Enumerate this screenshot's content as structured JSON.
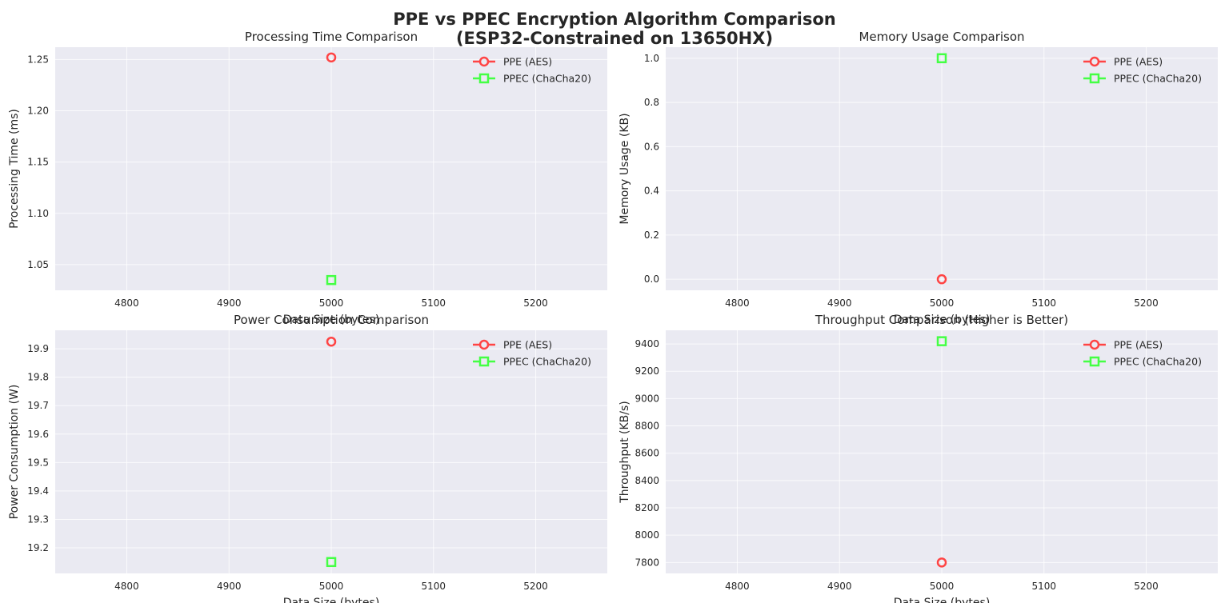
{
  "figure": {
    "title_line1": "PPE vs PPEC Encryption Algorithm Comparison",
    "title_line2": "(ESP32-Constrained on 13650HX)"
  },
  "colors": {
    "plot_bg": "#eaeaf2",
    "grid": "#ffffff",
    "ppe": "#ff4444",
    "ppec": "#44ff44"
  },
  "chart_data": [
    {
      "type": "line",
      "title": "Processing Time Comparison",
      "xlabel": "Data Size (bytes)",
      "ylabel": "Processing Time (ms)",
      "xlim": [
        4730,
        5270
      ],
      "ylim": [
        1.025,
        1.262
      ],
      "xticks": [
        4800,
        4900,
        5000,
        5100,
        5200
      ],
      "yticks": [
        1.05,
        1.1,
        1.15,
        1.2,
        1.25
      ],
      "ytick_labels": [
        "1.05",
        "1.10",
        "1.15",
        "1.20",
        "1.25"
      ],
      "legend": "top-right",
      "grid": true,
      "series": [
        {
          "name": "PPE (AES)",
          "marker": "circle",
          "x": [
            5000
          ],
          "y": [
            1.252
          ]
        },
        {
          "name": "PPEC (ChaCha20)",
          "marker": "square",
          "x": [
            5000
          ],
          "y": [
            1.035
          ]
        }
      ]
    },
    {
      "type": "line",
      "title": "Memory Usage Comparison",
      "xlabel": "Data Size (bytes)",
      "ylabel": "Memory Usage (KB)",
      "xlim": [
        4730,
        5270
      ],
      "ylim": [
        -0.05,
        1.05
      ],
      "xticks": [
        4800,
        4900,
        5000,
        5100,
        5200
      ],
      "yticks": [
        0.0,
        0.2,
        0.4,
        0.6,
        0.8,
        1.0
      ],
      "ytick_labels": [
        "0.0",
        "0.2",
        "0.4",
        "0.6",
        "0.8",
        "1.0"
      ],
      "legend": "top-right",
      "grid": true,
      "series": [
        {
          "name": "PPE (AES)",
          "marker": "circle",
          "x": [
            5000
          ],
          "y": [
            0.0
          ]
        },
        {
          "name": "PPEC (ChaCha20)",
          "marker": "square",
          "x": [
            5000
          ],
          "y": [
            1.0
          ]
        }
      ]
    },
    {
      "type": "line",
      "title": "Power Consumption Comparison",
      "xlabel": "Data Size (bytes)",
      "ylabel": "Power Consumption (W)",
      "xlim": [
        4730,
        5270
      ],
      "ylim": [
        19.11,
        19.965
      ],
      "xticks": [
        4800,
        4900,
        5000,
        5100,
        5200
      ],
      "yticks": [
        19.2,
        19.3,
        19.4,
        19.5,
        19.6,
        19.7,
        19.8,
        19.9
      ],
      "ytick_labels": [
        "19.2",
        "19.3",
        "19.4",
        "19.5",
        "19.6",
        "19.7",
        "19.8",
        "19.9"
      ],
      "legend": "top-right",
      "grid": true,
      "series": [
        {
          "name": "PPE (AES)",
          "marker": "circle",
          "x": [
            5000
          ],
          "y": [
            19.925
          ]
        },
        {
          "name": "PPEC (ChaCha20)",
          "marker": "square",
          "x": [
            5000
          ],
          "y": [
            19.15
          ]
        }
      ]
    },
    {
      "type": "line",
      "title": "Throughput Comparison (Higher is Better)",
      "xlabel": "Data Size (bytes)",
      "ylabel": "Throughput (KB/s)",
      "xlim": [
        4730,
        5270
      ],
      "ylim": [
        7720,
        9500
      ],
      "xticks": [
        4800,
        4900,
        5000,
        5100,
        5200
      ],
      "yticks": [
        7800,
        8000,
        8200,
        8400,
        8600,
        8800,
        9000,
        9200,
        9400
      ],
      "ytick_labels": [
        "7800",
        "8000",
        "8200",
        "8400",
        "8600",
        "8800",
        "9000",
        "9200",
        "9400"
      ],
      "legend": "top-right",
      "grid": true,
      "series": [
        {
          "name": "PPE (AES)",
          "marker": "circle",
          "x": [
            5000
          ],
          "y": [
            7800
          ]
        },
        {
          "name": "PPEC (ChaCha20)",
          "marker": "square",
          "x": [
            5000
          ],
          "y": [
            9420
          ]
        }
      ]
    }
  ]
}
